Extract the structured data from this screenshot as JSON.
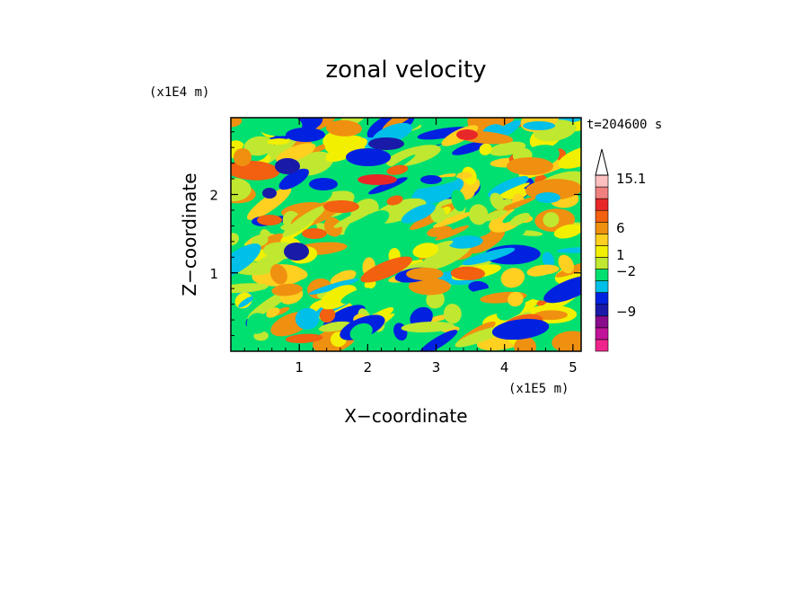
{
  "chart_data": {
    "type": "heatmap",
    "title": "zonal velocity",
    "xlabel": "X−coordinate",
    "ylabel": "Z−coordinate",
    "x_unit": "(x1E5 m)",
    "y_unit": "(x1E4 m)",
    "time_label": "t=204600 s",
    "xlim": [
      0,
      5.12
    ],
    "ylim": [
      0,
      2.98
    ],
    "x_ticks": [
      "1",
      "2",
      "3",
      "4",
      "5"
    ],
    "y_ticks": [
      "1",
      "2"
    ],
    "colorbar": {
      "labels": [
        "15.1",
        "6",
        "1",
        "−2",
        "−9"
      ],
      "bands": [
        {
          "color": "#f0258c"
        },
        {
          "color": "#c2149a"
        },
        {
          "color": "#8a0a8c"
        },
        {
          "color": "#1a1aa8"
        },
        {
          "color": "#0022e0"
        },
        {
          "color": "#00bfe8"
        },
        {
          "color": "#00e070"
        },
        {
          "color": "#c0e830"
        },
        {
          "color": "#f2f000"
        },
        {
          "color": "#ffd020"
        },
        {
          "color": "#f09010"
        },
        {
          "color": "#f26010"
        },
        {
          "color": "#e82828"
        },
        {
          "color": "#f08080"
        },
        {
          "color": "#fcc0c0"
        }
      ],
      "extend": "max"
    }
  }
}
